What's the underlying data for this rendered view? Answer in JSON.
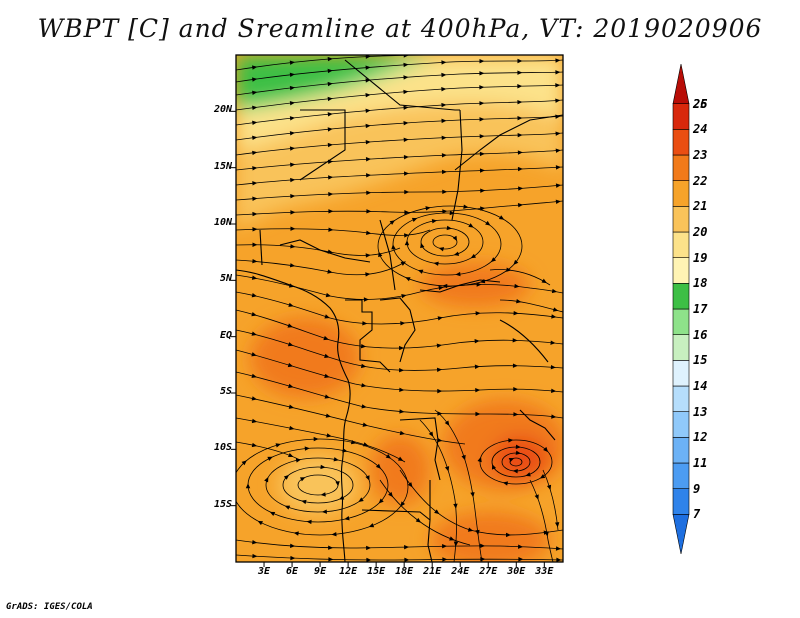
{
  "title": "WBPT [C] and Sreamline at 400hPa, VT: 2019020906",
  "footer": "GrADS: IGES/COLA",
  "map": {
    "lon_range": [
      0,
      35
    ],
    "lat_range": [
      -20,
      25
    ],
    "lat_labels": [
      {
        "lat": 20,
        "label": "20N"
      },
      {
        "lat": 15,
        "label": "15N"
      },
      {
        "lat": 10,
        "label": "10N"
      },
      {
        "lat": 5,
        "label": "5N"
      },
      {
        "lat": 0,
        "label": "EQ"
      },
      {
        "lat": -5,
        "label": "5S"
      },
      {
        "lat": -10,
        "label": "10S"
      },
      {
        "lat": -15,
        "label": "15S"
      }
    ],
    "lon_labels": [
      {
        "lon": 3,
        "label": "3E"
      },
      {
        "lon": 6,
        "label": "6E"
      },
      {
        "lon": 9,
        "label": "9E"
      },
      {
        "lon": 12,
        "label": "12E"
      },
      {
        "lon": 15,
        "label": "15E"
      },
      {
        "lon": 18,
        "label": "18E"
      },
      {
        "lon": 21,
        "label": "21E"
      },
      {
        "lon": 24,
        "label": "24E"
      },
      {
        "lon": 27,
        "label": "27E"
      },
      {
        "lon": 30,
        "label": "30E"
      },
      {
        "lon": 33,
        "label": "33E"
      }
    ]
  },
  "colorbar": {
    "labels": [
      "7",
      "9",
      "11",
      "12",
      "13",
      "14",
      "15",
      "16",
      "17",
      "18",
      "19",
      "20",
      "21",
      "22",
      "23",
      "24",
      "25",
      "26"
    ],
    "colors": [
      "#1e6fe0",
      "#2f83ea",
      "#4c9cf2",
      "#6cb2f6",
      "#90c9fa",
      "#b6defc",
      "#dff2fe",
      "#c8f0c0",
      "#8ee28a",
      "#3dbf45",
      "#fff4b4",
      "#fce28a",
      "#f9c35a",
      "#f6a32a",
      "#f17a1a",
      "#ea4e12",
      "#d8280c",
      "#b80d07"
    ]
  },
  "colors": {
    "ocean_bg": "#f9c35a",
    "main": "#f6a32a",
    "warm": "#f17a1a",
    "hot": "#ea4e12",
    "cool": "#fce28a",
    "pale": "#fff4b4",
    "green": "#3dbf45",
    "light_green": "#8ee28a"
  }
}
